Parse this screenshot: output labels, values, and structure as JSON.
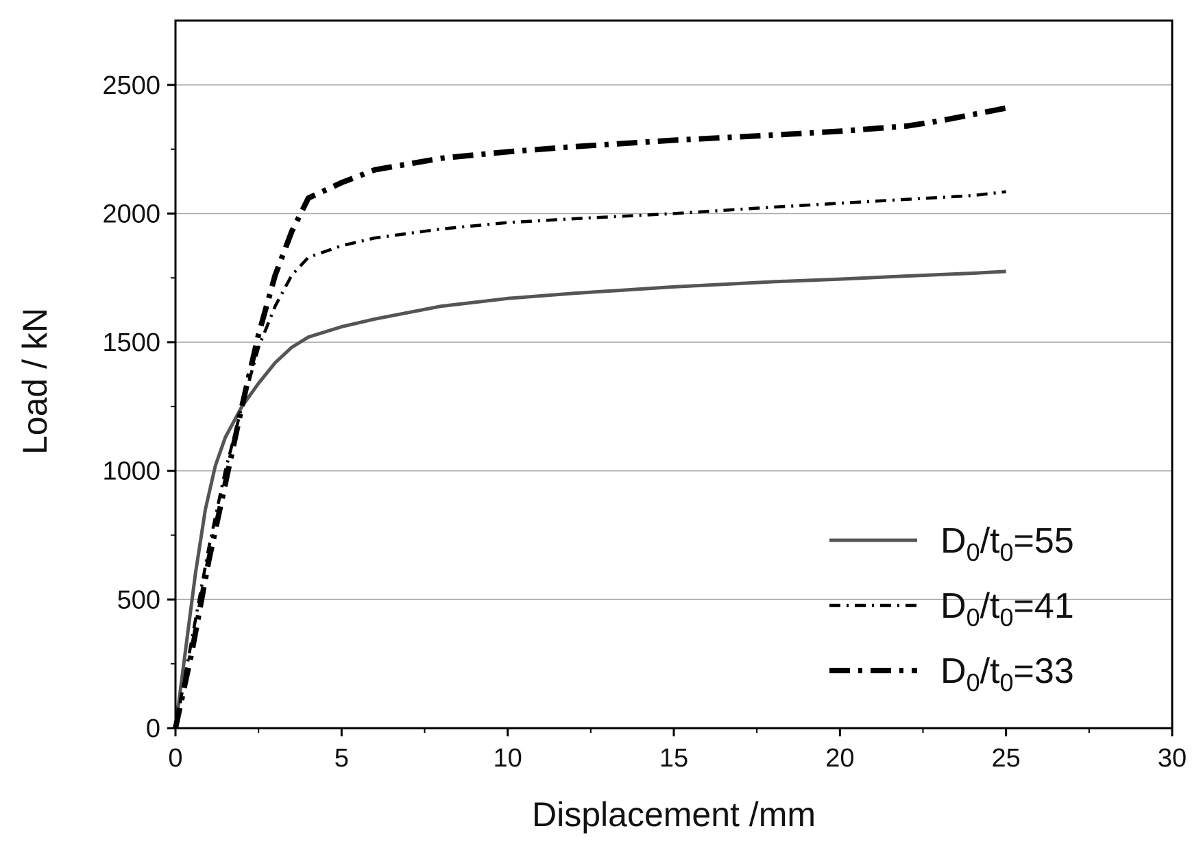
{
  "chart_data": {
    "type": "line",
    "xlabel": "Displacement /mm",
    "ylabel": "Load / kN",
    "xlim": [
      0,
      30
    ],
    "ylim": [
      0,
      2750
    ],
    "xticks": [
      0,
      5,
      10,
      15,
      20,
      25,
      30
    ],
    "yticks": [
      0,
      500,
      1000,
      1500,
      2000,
      2500
    ],
    "grid": "horizontal",
    "legend_position": "bottom-right",
    "series": [
      {
        "name": "D0/t0=55",
        "legend": {
          "main": "D",
          "sub1": "0",
          "mid": "/t",
          "sub2": "0",
          "tail": "=55"
        },
        "style": "solid",
        "color": "#555555",
        "points": [
          [
            0,
            0
          ],
          [
            0.3,
            300
          ],
          [
            0.6,
            600
          ],
          [
            0.9,
            850
          ],
          [
            1.2,
            1020
          ],
          [
            1.5,
            1130
          ],
          [
            2,
            1250
          ],
          [
            2.5,
            1340
          ],
          [
            3,
            1420
          ],
          [
            3.5,
            1480
          ],
          [
            4,
            1520
          ],
          [
            5,
            1560
          ],
          [
            6,
            1590
          ],
          [
            8,
            1640
          ],
          [
            10,
            1670
          ],
          [
            12,
            1690
          ],
          [
            15,
            1715
          ],
          [
            18,
            1735
          ],
          [
            20,
            1745
          ],
          [
            22,
            1757
          ],
          [
            24,
            1768
          ],
          [
            25,
            1775
          ]
        ]
      },
      {
        "name": "D0/t0=41",
        "legend": {
          "main": "D",
          "sub1": "0",
          "mid": "/t",
          "sub2": "0",
          "tail": "=41"
        },
        "style": "short-dash",
        "color": "#000000",
        "points": [
          [
            0,
            0
          ],
          [
            0.5,
            350
          ],
          [
            1,
            700
          ],
          [
            1.5,
            1000
          ],
          [
            2,
            1250
          ],
          [
            2.5,
            1480
          ],
          [
            3,
            1640
          ],
          [
            3.5,
            1760
          ],
          [
            4,
            1830
          ],
          [
            5,
            1875
          ],
          [
            6,
            1905
          ],
          [
            8,
            1940
          ],
          [
            10,
            1965
          ],
          [
            12,
            1980
          ],
          [
            15,
            2000
          ],
          [
            18,
            2025
          ],
          [
            20,
            2040
          ],
          [
            22,
            2055
          ],
          [
            24,
            2070
          ],
          [
            25,
            2085
          ]
        ]
      },
      {
        "name": "D0/t0=33",
        "legend": {
          "main": "D",
          "sub1": "0",
          "mid": "/t",
          "sub2": "0",
          "tail": "=33"
        },
        "style": "dash-dot",
        "color": "#000000",
        "points": [
          [
            0,
            0
          ],
          [
            0.5,
            300
          ],
          [
            1,
            650
          ],
          [
            1.5,
            950
          ],
          [
            2,
            1250
          ],
          [
            2.5,
            1530
          ],
          [
            3,
            1760
          ],
          [
            3.5,
            1930
          ],
          [
            4,
            2060
          ],
          [
            5,
            2120
          ],
          [
            6,
            2170
          ],
          [
            8,
            2215
          ],
          [
            10,
            2240
          ],
          [
            12,
            2260
          ],
          [
            15,
            2285
          ],
          [
            18,
            2305
          ],
          [
            20,
            2320
          ],
          [
            22,
            2340
          ],
          [
            23,
            2360
          ],
          [
            24,
            2385
          ],
          [
            25,
            2410
          ]
        ]
      }
    ]
  }
}
